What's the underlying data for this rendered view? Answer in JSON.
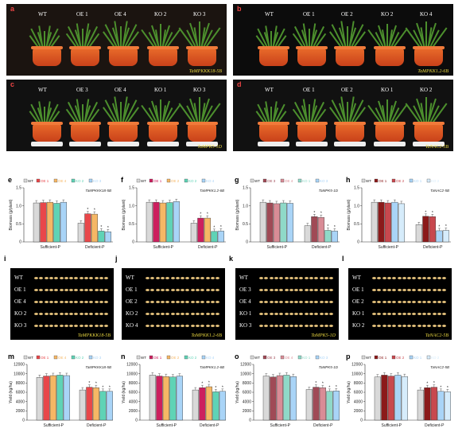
{
  "photo_panels": [
    {
      "letter": "a",
      "labels": [
        "WT",
        "OE 1",
        "OE 4",
        "KO 2",
        "KO 3"
      ],
      "gene": "TaMPKKK18-5B"
    },
    {
      "letter": "b",
      "labels": [
        "WT",
        "OE 1",
        "OE 2",
        "KO 2",
        "KO 4"
      ],
      "gene": "TaMPKK1.2-6B"
    },
    {
      "letter": "c",
      "labels": [
        "WT",
        "OE 3",
        "OE 4",
        "KO 1",
        "KO 3"
      ],
      "gene": "TaMPK5-1D"
    },
    {
      "letter": "d",
      "labels": [
        "WT",
        "OE 1",
        "OE 2",
        "KO 1",
        "KO 2"
      ],
      "gene": "TaNAC2-5B"
    }
  ],
  "biomass_charts": [
    {
      "letter": "e",
      "gene": "TaMPKKK18-5B",
      "legend": [
        "WT",
        "OE 1",
        "OE 4",
        "KO 2",
        "KO 3"
      ]
    },
    {
      "letter": "f",
      "gene": "TaMPKK1.2-6B",
      "legend": [
        "WT",
        "OE 1",
        "OE 2",
        "KO 2",
        "KO 4"
      ]
    },
    {
      "letter": "g",
      "gene": "TaMPK5-1D",
      "legend": [
        "WT",
        "OE 3",
        "OE 4",
        "KO 1",
        "KO 3"
      ]
    },
    {
      "letter": "h",
      "gene": "TaNAC2-5B",
      "legend": [
        "WT",
        "OE 1",
        "OE 2",
        "KO 1",
        "KO 2"
      ]
    }
  ],
  "seed_panels": [
    {
      "letter": "i",
      "labels": [
        "WT",
        "OE 1",
        "OE 4",
        "KO 2",
        "KO 3"
      ],
      "gene": "TaMPKKK18-5B"
    },
    {
      "letter": "j",
      "labels": [
        "WT",
        "OE 1",
        "OE 2",
        "KO 2",
        "KO 4"
      ],
      "gene": "TaMPKK1.2-6B"
    },
    {
      "letter": "k",
      "labels": [
        "WT",
        "OE 3",
        "OE 4",
        "KO 1",
        "KO 3"
      ],
      "gene": "TaMPK5-1D"
    },
    {
      "letter": "l",
      "labels": [
        "WT",
        "OE 1",
        "OE 2",
        "KO 1",
        "KO 2"
      ],
      "gene": "TaNAC2-5B"
    }
  ],
  "yield_charts": [
    {
      "letter": "m",
      "gene": "TaMPKKK18-5B",
      "legend": [
        "WT",
        "OE 1",
        "OE 4",
        "KO 2",
        "KO 3"
      ]
    },
    {
      "letter": "n",
      "gene": "TaMPKK1.2-6B",
      "legend": [
        "WT",
        "OE 1",
        "OE 2",
        "KO 2",
        "KO 4"
      ]
    },
    {
      "letter": "o",
      "gene": "TaMPK5-1D",
      "legend": [
        "WT",
        "OE 3",
        "OE 4",
        "KO 1",
        "KO 3"
      ]
    },
    {
      "letter": "p",
      "gene": "TaNAC2-5B",
      "legend": [
        "WT",
        "OE 1",
        "OE 2",
        "KO 1",
        "KO 2"
      ]
    }
  ],
  "chart_data": [
    {
      "type": "bar",
      "ylabel": "Biomass (g/plant)",
      "categories": [
        "Sufficient-P",
        "Deficient-P"
      ],
      "ylim": [
        0,
        1.5
      ],
      "ticks": [
        "0",
        "0.5",
        "1.0",
        "1.5"
      ],
      "series": [
        {
          "name": "WT",
          "values": [
            1.08,
            0.52
          ]
        },
        {
          "name": "OE 1",
          "values": [
            1.09,
            0.78
          ]
        },
        {
          "name": "OE 4",
          "values": [
            1.1,
            0.77
          ]
        },
        {
          "name": "KO 2",
          "values": [
            1.07,
            0.3
          ]
        },
        {
          "name": "KO 3",
          "values": [
            1.1,
            0.28
          ]
        }
      ],
      "colors": [
        "#d9d9d9",
        "#e8474a",
        "#f6b765",
        "#5fd3b6",
        "#a9d4f7"
      ]
    },
    {
      "type": "bar",
      "ylabel": "Biomass (g/plant)",
      "categories": [
        "Sufficient-P",
        "Deficient-P"
      ],
      "ylim": [
        0,
        1.5
      ],
      "ticks": [
        "0",
        "0.5",
        "1.0",
        "1.5"
      ],
      "series": [
        {
          "name": "WT",
          "values": [
            1.1,
            0.52
          ]
        },
        {
          "name": "OE 1",
          "values": [
            1.1,
            0.66
          ]
        },
        {
          "name": "OE 2",
          "values": [
            1.08,
            0.66
          ]
        },
        {
          "name": "KO 2",
          "values": [
            1.09,
            0.29
          ]
        },
        {
          "name": "KO 4",
          "values": [
            1.12,
            0.3
          ]
        }
      ],
      "colors": [
        "#d9d9d9",
        "#cc1f5e",
        "#f6b765",
        "#5fd3b6",
        "#a9d4f7"
      ]
    },
    {
      "type": "bar",
      "ylabel": "Biomass (g/plant)",
      "categories": [
        "Sufficient-P",
        "Deficient-P"
      ],
      "ylim": [
        0,
        1.5
      ],
      "ticks": [
        "0",
        "0.5",
        "1.0",
        "1.5"
      ],
      "series": [
        {
          "name": "WT",
          "values": [
            1.1,
            0.45
          ]
        },
        {
          "name": "OE 3",
          "values": [
            1.08,
            0.7
          ]
        },
        {
          "name": "OE 4",
          "values": [
            1.06,
            0.68
          ]
        },
        {
          "name": "KO 1",
          "values": [
            1.08,
            0.32
          ]
        },
        {
          "name": "KO 3",
          "values": [
            1.07,
            0.3
          ]
        }
      ],
      "colors": [
        "#d9d9d9",
        "#a04a56",
        "#d98c96",
        "#8fd9c8",
        "#a9d4f7"
      ]
    },
    {
      "type": "bar",
      "ylabel": "Biomass (g/plant)",
      "categories": [
        "Sufficient-P",
        "Deficient-P"
      ],
      "ylim": [
        0,
        1.5
      ],
      "ticks": [
        "0",
        "0.5",
        "1.0",
        "1.5"
      ],
      "series": [
        {
          "name": "WT",
          "values": [
            1.1,
            0.48
          ]
        },
        {
          "name": "OE 1",
          "values": [
            1.1,
            0.71
          ]
        },
        {
          "name": "OE 2",
          "values": [
            1.08,
            0.7
          ]
        },
        {
          "name": "KO 1",
          "values": [
            1.1,
            0.31
          ]
        },
        {
          "name": "KO 2",
          "values": [
            1.06,
            0.32
          ]
        }
      ],
      "colors": [
        "#d9d9d9",
        "#8b1a1a",
        "#c8484e",
        "#a9d4f7",
        "#d6ecfb"
      ]
    },
    {
      "type": "bar",
      "ylabel": "Yield (kg/ha)",
      "categories": [
        "Sufficient-P",
        "Deficient-P"
      ],
      "ylim": [
        0,
        12000
      ],
      "ticks": [
        "0",
        "2000",
        "4000",
        "6000",
        "8000",
        "10000",
        "12000"
      ],
      "series": [
        {
          "name": "WT",
          "values": [
            9200,
            6500
          ]
        },
        {
          "name": "OE 1",
          "values": [
            9500,
            7100
          ]
        },
        {
          "name": "OE 4",
          "values": [
            9600,
            7000
          ]
        },
        {
          "name": "KO 2",
          "values": [
            9700,
            6200
          ]
        },
        {
          "name": "KO 3",
          "values": [
            9600,
            6200
          ]
        }
      ],
      "colors": [
        "#d9d9d9",
        "#e8474a",
        "#f6b765",
        "#5fd3b6",
        "#a9d4f7"
      ]
    },
    {
      "type": "bar",
      "ylabel": "Yield (kg/ha)",
      "categories": [
        "Sufficient-P",
        "Deficient-P"
      ],
      "ylim": [
        0,
        12000
      ],
      "ticks": [
        "0",
        "2000",
        "4000",
        "6000",
        "8000",
        "10000",
        "12000"
      ],
      "series": [
        {
          "name": "WT",
          "values": [
            9700,
            6500
          ]
        },
        {
          "name": "OE 1",
          "values": [
            9500,
            7000
          ]
        },
        {
          "name": "OE 2",
          "values": [
            9400,
            7200
          ]
        },
        {
          "name": "KO 2",
          "values": [
            9300,
            6100
          ]
        },
        {
          "name": "KO 4",
          "values": [
            9500,
            6200
          ]
        }
      ],
      "colors": [
        "#d9d9d9",
        "#cc1f5e",
        "#f6b765",
        "#5fd3b6",
        "#a9d4f7"
      ]
    },
    {
      "type": "bar",
      "ylabel": "Yield (kg/ha)",
      "categories": [
        "Sufficient-P",
        "Deficient-P"
      ],
      "ylim": [
        0,
        12000
      ],
      "ticks": [
        "0",
        "2000",
        "4000",
        "6000",
        "8000",
        "10000",
        "12000"
      ],
      "series": [
        {
          "name": "WT",
          "values": [
            9500,
            6600
          ]
        },
        {
          "name": "OE 3",
          "values": [
            9300,
            7100
          ]
        },
        {
          "name": "OE 4",
          "values": [
            9600,
            7000
          ]
        },
        {
          "name": "KO 1",
          "values": [
            9700,
            6200
          ]
        },
        {
          "name": "KO 3",
          "values": [
            9400,
            6300
          ]
        }
      ],
      "colors": [
        "#d9d9d9",
        "#a04a56",
        "#d98c96",
        "#8fd9c8",
        "#a9d4f7"
      ]
    },
    {
      "type": "bar",
      "ylabel": "Yield (kg/ha)",
      "categories": [
        "Sufficient-P",
        "Deficient-P"
      ],
      "ylim": [
        0,
        12000
      ],
      "ticks": [
        "0",
        "2000",
        "4000",
        "6000",
        "8000",
        "10000",
        "12000"
      ],
      "series": [
        {
          "name": "WT",
          "values": [
            9300,
            6500
          ]
        },
        {
          "name": "OE 1",
          "values": [
            9700,
            7000
          ]
        },
        {
          "name": "OE 2",
          "values": [
            9500,
            7100
          ]
        },
        {
          "name": "KO 1",
          "values": [
            9700,
            6200
          ]
        },
        {
          "name": "KO 2",
          "values": [
            9400,
            6100
          ]
        }
      ],
      "colors": [
        "#d9d9d9",
        "#8b1a1a",
        "#c8484e",
        "#a9d4f7",
        "#d6ecfb"
      ]
    }
  ]
}
